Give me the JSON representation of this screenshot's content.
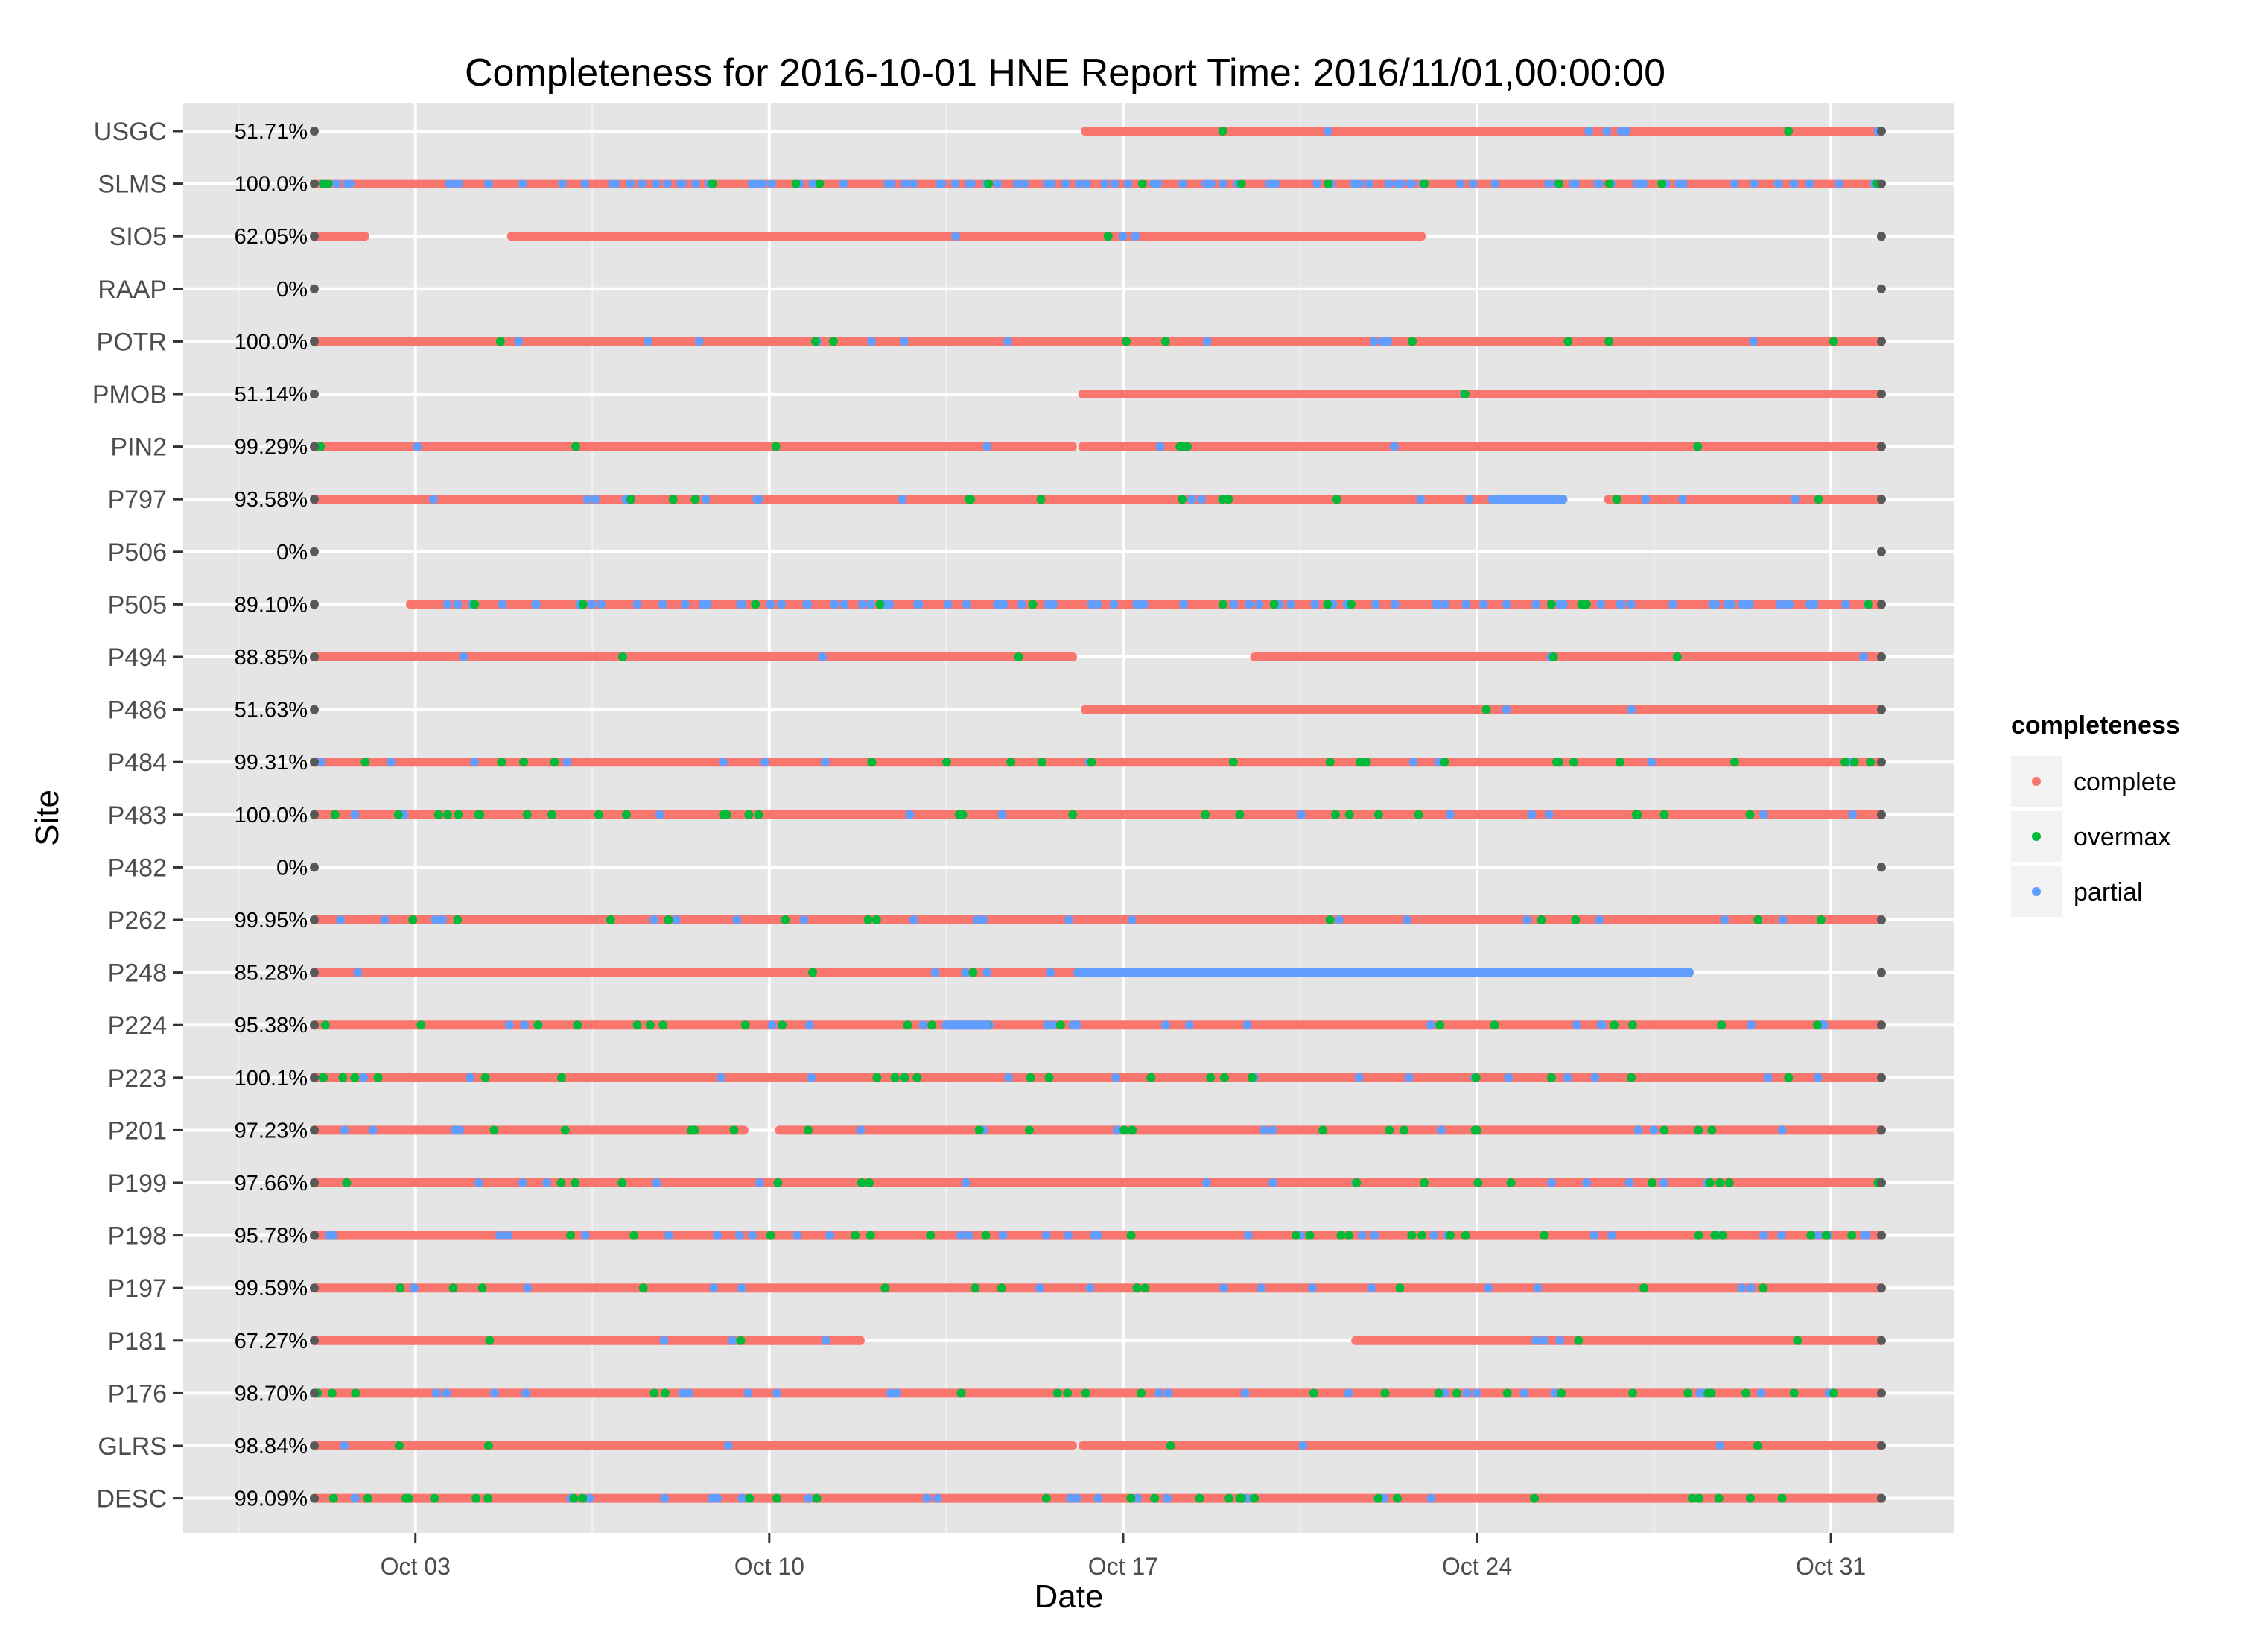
{
  "chart_data": {
    "type": "scatter",
    "title": "Completeness for  2016-10-01 HNE  Report Time:  2016/11/01,00:00:00",
    "xlabel": "Date",
    "ylabel": "Site",
    "x_ticks": [
      "Oct 03",
      "Oct 10",
      "Oct 17",
      "Oct 24",
      "Oct 31"
    ],
    "x_tick_days": [
      3,
      10,
      17,
      24,
      31
    ],
    "xlim_days": [
      1,
      32
    ],
    "grid": true,
    "legend": {
      "title": "completeness",
      "placement": "right",
      "entries": [
        {
          "name": "complete",
          "color": "#F8766D"
        },
        {
          "name": "overmax",
          "color": "#00BA38"
        },
        {
          "name": "partial",
          "color": "#619CFF"
        }
      ]
    },
    "endpoint_color": "#595959",
    "sites": [
      {
        "name": "USGC",
        "pct": "51.71%",
        "segments": [
          [
            16.25,
            32
          ]
        ],
        "partial_runs": [],
        "partial": 0.05,
        "overmax": 0.02
      },
      {
        "name": "SLMS",
        "pct": "100.0%",
        "segments": [
          [
            1,
            32
          ]
        ],
        "partial_runs": [],
        "partial": 0.45,
        "overmax": 0.06
      },
      {
        "name": "SIO5",
        "pct": "62.05%",
        "segments": [
          [
            1,
            2
          ],
          [
            4.9,
            22.9
          ]
        ],
        "partial_runs": [],
        "partial": 0.02,
        "overmax": 0.01
      },
      {
        "name": "RAAP",
        "pct": "0%",
        "segments": [],
        "partial_runs": [],
        "partial": 0,
        "overmax": 0
      },
      {
        "name": "POTR",
        "pct": "100.0%",
        "segments": [
          [
            1,
            32
          ]
        ],
        "partial_runs": [],
        "partial": 0.05,
        "overmax": 0.04
      },
      {
        "name": "PMOB",
        "pct": "51.14%",
        "segments": [
          [
            16.2,
            32
          ]
        ],
        "partial_runs": [],
        "partial": 0.01,
        "overmax": 0.01
      },
      {
        "name": "PIN2",
        "pct": "99.29%",
        "segments": [
          [
            1,
            16.0
          ],
          [
            16.2,
            32
          ]
        ],
        "partial_runs": [],
        "partial": 0.02,
        "overmax": 0.03
      },
      {
        "name": "P797",
        "pct": "93.58%",
        "segments": [
          [
            1,
            25.7
          ],
          [
            26.6,
            32
          ]
        ],
        "partial_runs": [
          [
            24.3,
            25.7
          ]
        ],
        "partial": 0.07,
        "overmax": 0.06
      },
      {
        "name": "P506",
        "pct": "0%",
        "segments": [],
        "partial_runs": [],
        "partial": 0,
        "overmax": 0
      },
      {
        "name": "P505",
        "pct": "89.10%",
        "segments": [
          [
            2.9,
            32
          ]
        ],
        "partial_runs": [],
        "partial": 0.4,
        "overmax": 0.06
      },
      {
        "name": "P494",
        "pct": "88.85%",
        "segments": [
          [
            1,
            16.0
          ],
          [
            19.6,
            32
          ]
        ],
        "partial_runs": [],
        "partial": 0.02,
        "overmax": 0.02
      },
      {
        "name": "P486",
        "pct": "51.63%",
        "segments": [
          [
            16.25,
            32
          ]
        ],
        "partial_runs": [],
        "partial": 0.02,
        "overmax": 0.01
      },
      {
        "name": "P484",
        "pct": "99.31%",
        "segments": [
          [
            1,
            32
          ]
        ],
        "partial_runs": [],
        "partial": 0.05,
        "overmax": 0.1
      },
      {
        "name": "P483",
        "pct": "100.0%",
        "segments": [
          [
            1,
            32
          ]
        ],
        "partial_runs": [],
        "partial": 0.05,
        "overmax": 0.12
      },
      {
        "name": "P482",
        "pct": "0%",
        "segments": [],
        "partial_runs": [],
        "partial": 0,
        "overmax": 0
      },
      {
        "name": "P262",
        "pct": "99.95%",
        "segments": [
          [
            1,
            32
          ]
        ],
        "partial_runs": [],
        "partial": 0.08,
        "overmax": 0.05
      },
      {
        "name": "P248",
        "pct": "85.28%",
        "segments": [
          [
            1,
            28.2
          ]
        ],
        "partial_runs": [
          [
            16.1,
            28.2
          ]
        ],
        "partial": 0.03,
        "overmax": 0.03
      },
      {
        "name": "P224",
        "pct": "95.38%",
        "segments": [
          [
            1,
            32
          ]
        ],
        "partial_runs": [
          [
            13.5,
            14.3
          ]
        ],
        "partial": 0.1,
        "overmax": 0.08
      },
      {
        "name": "P223",
        "pct": "100.1%",
        "segments": [
          [
            1,
            32
          ]
        ],
        "partial_runs": [],
        "partial": 0.07,
        "overmax": 0.09
      },
      {
        "name": "P201",
        "pct": "97.23%",
        "segments": [
          [
            1,
            9.5
          ],
          [
            10.2,
            32
          ]
        ],
        "partial_runs": [],
        "partial": 0.06,
        "overmax": 0.08
      },
      {
        "name": "P199",
        "pct": "97.66%",
        "segments": [
          [
            1,
            32
          ]
        ],
        "partial_runs": [],
        "partial": 0.06,
        "overmax": 0.07
      },
      {
        "name": "P198",
        "pct": "95.78%",
        "segments": [
          [
            1,
            32
          ]
        ],
        "partial_runs": [],
        "partial": 0.14,
        "overmax": 0.1
      },
      {
        "name": "P197",
        "pct": "99.59%",
        "segments": [
          [
            1,
            32
          ]
        ],
        "partial_runs": [],
        "partial": 0.06,
        "overmax": 0.05
      },
      {
        "name": "P181",
        "pct": "67.27%",
        "segments": [
          [
            1,
            11.8
          ],
          [
            21.6,
            32
          ]
        ],
        "partial_runs": [],
        "partial": 0.04,
        "overmax": 0.03
      },
      {
        "name": "P176",
        "pct": "98.70%",
        "segments": [
          [
            1,
            32
          ]
        ],
        "partial_runs": [],
        "partial": 0.1,
        "overmax": 0.1
      },
      {
        "name": "GLRS",
        "pct": "98.84%",
        "segments": [
          [
            1,
            16.0
          ],
          [
            16.2,
            32
          ]
        ],
        "partial_runs": [],
        "partial": 0.02,
        "overmax": 0.02
      },
      {
        "name": "DESC",
        "pct": "99.09%",
        "segments": [
          [
            1,
            32
          ]
        ],
        "partial_runs": [],
        "partial": 0.08,
        "overmax": 0.12
      }
    ]
  }
}
